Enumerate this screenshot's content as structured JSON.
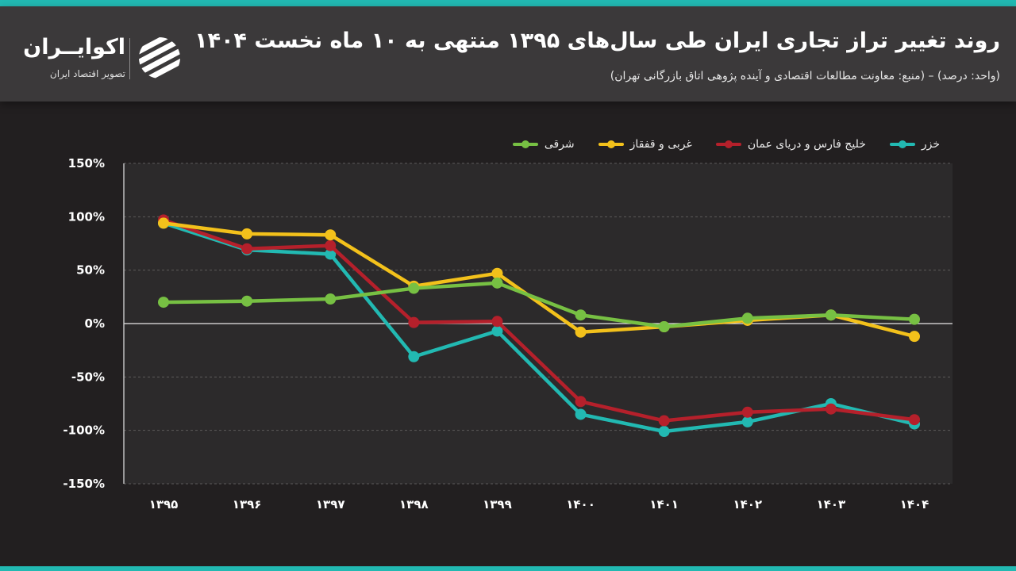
{
  "header": {
    "title": "روند تغییر تراز تجاری ایران طی سال‌های ۱۳۹۵ منتهی به ۱۰ ماه نخست ۱۴۰۴",
    "subtitle": "(واحد: درصد) – (منبع: معاونت مطالعات اقتصادی و آینده پژوهی اتاق بازرگانی تهران)"
  },
  "logo": {
    "name": "اکوایــران",
    "tagline": "تصویر اقتصاد ایران",
    "icon": "ecoiran-stripes-logo"
  },
  "colors": {
    "accent": "#22b9b2",
    "header_bg": "#3b393a",
    "page_bg": "#221f20"
  },
  "chart_data": {
    "type": "line",
    "title": "",
    "xlabel": "",
    "ylabel": "",
    "categories": [
      "۱۳۹۵",
      "۱۳۹۶",
      "۱۳۹۷",
      "۱۳۹۸",
      "۱۳۹۹",
      "۱۴۰۰",
      "۱۴۰۱",
      "۱۴۰۲",
      "۱۴۰۳",
      "۱۴۰۴"
    ],
    "ylim": [
      -150,
      150
    ],
    "yticks": [
      150,
      100,
      50,
      0,
      -50,
      -100,
      -150
    ],
    "ytick_labels": [
      "150%",
      "100%",
      "50%",
      "0%",
      "-50%",
      "-100%",
      "-150%"
    ],
    "grid": true,
    "legend_position": "top-right",
    "series": [
      {
        "name": "خزر",
        "color": "#22b9b2",
        "values": [
          94,
          69,
          65,
          -31,
          -7,
          -85,
          -101,
          -92,
          -75,
          -94
        ]
      },
      {
        "name": "خلیج فارس و دریای عمان",
        "color": "#b5202b",
        "values": [
          97,
          70,
          73,
          1,
          2,
          -73,
          -91,
          -83,
          -80,
          -90
        ]
      },
      {
        "name": "غربی و قفقاز",
        "color": "#f3c11b",
        "values": [
          94,
          84,
          83,
          35,
          47,
          -8,
          -3,
          3,
          8,
          -12
        ]
      },
      {
        "name": "شرقی",
        "color": "#77c043",
        "values": [
          20,
          21,
          23,
          33,
          38,
          8,
          -3,
          5,
          8,
          4
        ]
      }
    ]
  }
}
